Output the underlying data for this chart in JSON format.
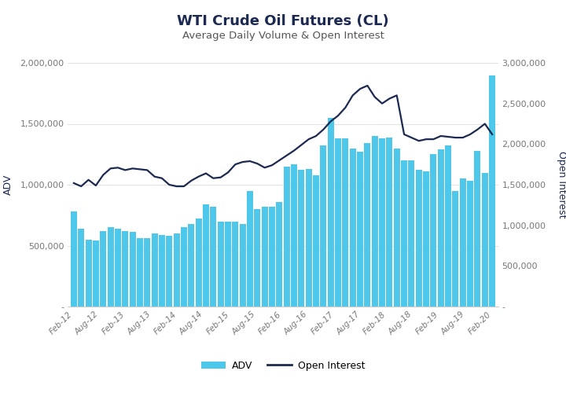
{
  "title": "WTI Crude Oil Futures (CL)",
  "subtitle": "Average Daily Volume & Open Interest",
  "title_color": "#1c2951",
  "subtitle_color": "#555555",
  "bar_color": "#4dc8ea",
  "line_color": "#1c2951",
  "background_color": "#ffffff",
  "ylabel_left": "ADV",
  "ylabel_right": "Open Interest",
  "ylim_left": [
    0,
    2000000
  ],
  "ylim_right": [
    0,
    3000000
  ],
  "yticks_left": [
    0,
    500000,
    1000000,
    1500000,
    2000000
  ],
  "yticks_right": [
    0,
    500000,
    1000000,
    1500000,
    2000000,
    2500000,
    3000000
  ],
  "adv": [
    780000,
    640000,
    550000,
    540000,
    620000,
    650000,
    640000,
    620000,
    610000,
    560000,
    560000,
    600000,
    590000,
    580000,
    600000,
    650000,
    680000,
    720000,
    840000,
    820000,
    700000,
    700000,
    700000,
    680000,
    950000,
    800000,
    820000,
    820000,
    860000,
    1150000,
    1170000,
    1120000,
    1130000,
    1080000,
    1320000,
    1550000,
    1380000,
    1380000,
    1300000,
    1270000,
    1340000,
    1400000,
    1380000,
    1390000,
    1300000,
    1200000,
    1200000,
    1120000,
    1110000,
    1250000,
    1290000,
    1320000,
    950000,
    1050000,
    1030000,
    1280000,
    1100000,
    1900000
  ],
  "open_interest": [
    1520000,
    1480000,
    1560000,
    1490000,
    1620000,
    1700000,
    1710000,
    1680000,
    1700000,
    1690000,
    1680000,
    1600000,
    1580000,
    1500000,
    1480000,
    1480000,
    1550000,
    1600000,
    1640000,
    1580000,
    1590000,
    1650000,
    1750000,
    1780000,
    1790000,
    1760000,
    1710000,
    1740000,
    1800000,
    1860000,
    1920000,
    1990000,
    2060000,
    2100000,
    2180000,
    2280000,
    2350000,
    2450000,
    2600000,
    2680000,
    2720000,
    2580000,
    2500000,
    2560000,
    2600000,
    2120000,
    2080000,
    2040000,
    2060000,
    2060000,
    2100000,
    2090000,
    2080000,
    2080000,
    2120000,
    2180000,
    2250000,
    2120000
  ],
  "xtick_labels": [
    "Feb-12",
    "Aug-12",
    "Feb-13",
    "Aug-13",
    "Feb-14",
    "Aug-14",
    "Feb-15",
    "Aug-15",
    "Feb-16",
    "Aug-16",
    "Feb-17",
    "Aug-17",
    "Feb-18",
    "Aug-18",
    "Feb-19",
    "Aug-19",
    "Feb-20"
  ]
}
